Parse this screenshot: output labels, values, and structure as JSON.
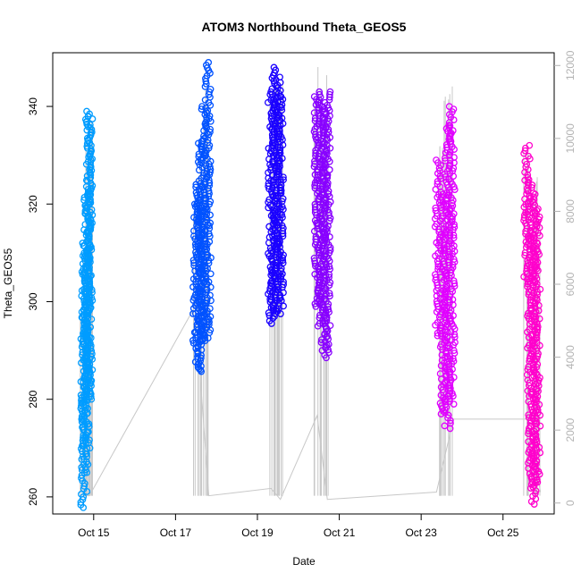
{
  "chart_data": {
    "type": "scatter",
    "title": "ATOM3 Northbound Theta_GEOS5",
    "xlabel": "Date",
    "ylabel": "Theta_GEOS5",
    "x_ticks": [
      "Oct 15",
      "Oct 17",
      "Oct 19",
      "Oct 21",
      "Oct 23",
      "Oct 25"
    ],
    "y_ticks": [
      "260",
      "280",
      "300",
      "320",
      "340"
    ],
    "y2_ticks": [
      "0",
      "2000",
      "4000",
      "6000",
      "8000",
      "10000",
      "12000"
    ],
    "xlim": [
      "2016-10-14 00:00",
      "2016-10-26 06:00"
    ],
    "ylim": [
      256.5,
      351
    ],
    "y2lim": [
      -300,
      12350
    ],
    "grid": false,
    "legend": "none",
    "colors": {
      "altitude_line": "#c8c8c8",
      "palette": [
        "#00a7ff",
        "#0066ff",
        "#0026ff",
        "#5200ff",
        "#b700ff",
        "#ff00cc"
      ]
    },
    "series": [
      {
        "color": "#009cff",
        "points": [
          {
            "x": "2016-10-14 18:15",
            "y": 257.8,
            "ytop": 310.5,
            "alt_top": 5200
          },
          {
            "x": "2016-10-14 19:00",
            "y": 265,
            "ytop": 312,
            "alt_top": 7000
          },
          {
            "x": "2016-10-14 20:00",
            "y": 270,
            "ytop": 323,
            "alt_top": 9800
          },
          {
            "x": "2016-10-14 21:00",
            "y": 280,
            "ytop": 339,
            "alt_top": 10800
          },
          {
            "x": "2016-10-14 21:30",
            "y": 280,
            "ytop": 338,
            "alt_top": 10500
          }
        ]
      },
      {
        "color": "#0052ff",
        "points": [
          {
            "x": "2016-10-17 12:00",
            "y": 291.5,
            "ytop": 320,
            "alt_top": 8800
          },
          {
            "x": "2016-10-17 13:30",
            "y": 286,
            "ytop": 324,
            "alt_top": 9500
          },
          {
            "x": "2016-10-17 15:00",
            "y": 285.7,
            "ytop": 333,
            "alt_top": 10000
          },
          {
            "x": "2016-10-17 17:00",
            "y": 292,
            "ytop": 340,
            "alt_top": 11500
          },
          {
            "x": "2016-10-17 19:00",
            "y": 292,
            "ytop": 349,
            "alt_top": 12000
          }
        ]
      },
      {
        "color": "#1a00ff",
        "points": [
          {
            "x": "2016-10-19 08:00",
            "y": 295.5,
            "ytop": 343,
            "alt_top": 11800
          },
          {
            "x": "2016-10-19 10:00",
            "y": 297,
            "ytop": 348,
            "alt_top": 12300
          },
          {
            "x": "2016-10-19 12:00",
            "y": 297.5,
            "ytop": 346,
            "alt_top": 12200
          },
          {
            "x": "2016-10-19 13:30",
            "y": 298,
            "ytop": 342,
            "alt_top": 11800
          }
        ]
      },
      {
        "color": "#8800ff",
        "points": [
          {
            "x": "2016-10-20 11:00",
            "y": 299,
            "ytop": 342,
            "alt_top": 12000
          },
          {
            "x": "2016-10-20 13:00",
            "y": 295,
            "ytop": 343,
            "alt_top": 12100
          },
          {
            "x": "2016-10-20 15:00",
            "y": 290,
            "ytop": 340,
            "alt_top": 11900
          },
          {
            "x": "2016-10-20 17:00",
            "y": 288.5,
            "ytop": 343,
            "alt_top": 12000
          }
        ]
      },
      {
        "color": "#e000ff",
        "points": [
          {
            "x": "2016-10-23 10:00",
            "y": 293,
            "ytop": 329,
            "alt_top": 10600
          },
          {
            "x": "2016-10-23 13:00",
            "y": 277,
            "ytop": 322,
            "alt_top": 9900
          },
          {
            "x": "2016-10-23 15:30",
            "y": 274,
            "ytop": 336,
            "alt_top": 11200
          },
          {
            "x": "2016-10-23 18:00",
            "y": 279,
            "ytop": 340,
            "alt_top": 12000
          }
        ]
      },
      {
        "color": "#ff00cc",
        "points": [
          {
            "x": "2016-10-25 14:00",
            "y": 304,
            "ytop": 332,
            "alt_top": 10000
          },
          {
            "x": "2016-10-25 16:00",
            "y": 262,
            "ytop": 325,
            "alt_top": 9800
          },
          {
            "x": "2016-10-25 18:00",
            "y": 258.5,
            "ytop": 322,
            "alt_top": 9000
          },
          {
            "x": "2016-10-25 20:00",
            "y": 263,
            "ytop": 319,
            "alt_top": 8500
          }
        ]
      }
    ],
    "altitude_path": [
      {
        "x": "2016-10-14 18:00",
        "alt": 200
      },
      {
        "x": "2016-10-14 21:30",
        "alt": 200
      },
      {
        "x": "2016-10-17 11:30",
        "alt": 5400
      },
      {
        "x": "2016-10-17 19:30",
        "alt": 200
      },
      {
        "x": "2016-10-19 08:00",
        "alt": 400
      },
      {
        "x": "2016-10-19 13:30",
        "alt": 100
      },
      {
        "x": "2016-10-20 11:00",
        "alt": 2400
      },
      {
        "x": "2016-10-20 17:00",
        "alt": 100
      },
      {
        "x": "2016-10-23 09:00",
        "alt": 300
      },
      {
        "x": "2016-10-23 19:00",
        "alt": 2300
      },
      {
        "x": "2016-10-25 14:00",
        "alt": 2300
      },
      {
        "x": "2016-10-25 22:00",
        "alt": 300
      }
    ]
  }
}
